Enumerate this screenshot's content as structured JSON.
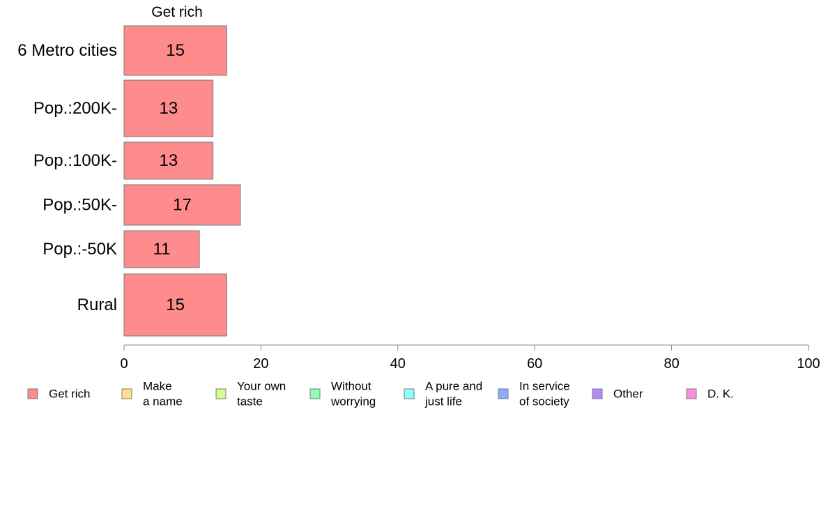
{
  "chart_data": {
    "type": "bar",
    "orientation": "horizontal",
    "title": "Get rich",
    "categories": [
      "6 Metro cities",
      "Pop.:200K-",
      "Pop.:100K-",
      "Pop.:50K-",
      "Pop.:-50K",
      "Rural"
    ],
    "series": [
      {
        "name": "Get rich",
        "color": "#ff8c8c",
        "values": [
          15,
          13,
          13,
          17,
          11,
          15
        ],
        "labels": [
          "15",
          "13",
          "13",
          "17",
          "11",
          "15"
        ]
      }
    ],
    "xlim": [
      0,
      100
    ],
    "xticks": [
      0,
      20,
      40,
      60,
      80,
      100
    ],
    "xtick_labels": [
      "0",
      "20",
      "40",
      "60",
      "80",
      "100"
    ],
    "grid": false,
    "legend_position": "bottom",
    "legend": [
      {
        "lines": [
          "Get rich"
        ],
        "color": "#ff8c8c"
      },
      {
        "lines": [
          "Make",
          "a name"
        ],
        "color": "#ffe08c"
      },
      {
        "lines": [
          "Your own",
          "taste"
        ],
        "color": "#d2ff8c"
      },
      {
        "lines": [
          "Without",
          "worrying"
        ],
        "color": "#8cffb4"
      },
      {
        "lines": [
          "A pure and",
          "just life"
        ],
        "color": "#8cffff"
      },
      {
        "lines": [
          "In service",
          "of society"
        ],
        "color": "#8cacff"
      },
      {
        "lines": [
          "Other"
        ],
        "color": "#b48cff"
      },
      {
        "lines": [
          "D. K."
        ],
        "color": "#ff8ce0"
      }
    ]
  }
}
